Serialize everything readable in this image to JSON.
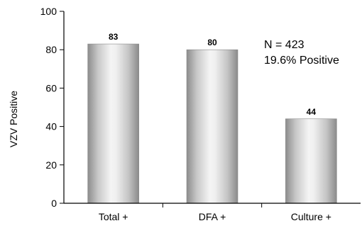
{
  "chart_data": {
    "type": "bar",
    "categories": [
      "Total +",
      "DFA +",
      "Culture +"
    ],
    "values": [
      83,
      80,
      44
    ],
    "data_labels": [
      "83",
      "80",
      "44"
    ],
    "title": "",
    "xlabel": "",
    "ylabel": "VZV Positive",
    "ylim": [
      0,
      100
    ],
    "yticks": [
      "0",
      "20",
      "40",
      "60",
      "80",
      "100"
    ],
    "annotations": [
      "N = 423",
      "19.6% Positive"
    ],
    "grid": false,
    "legend": "none",
    "colors": {
      "bar_edge": "#8a8a8a",
      "bar_light": "#f2f2f2",
      "bar_mid": "#bdbdbd",
      "axis": "#000000"
    }
  }
}
